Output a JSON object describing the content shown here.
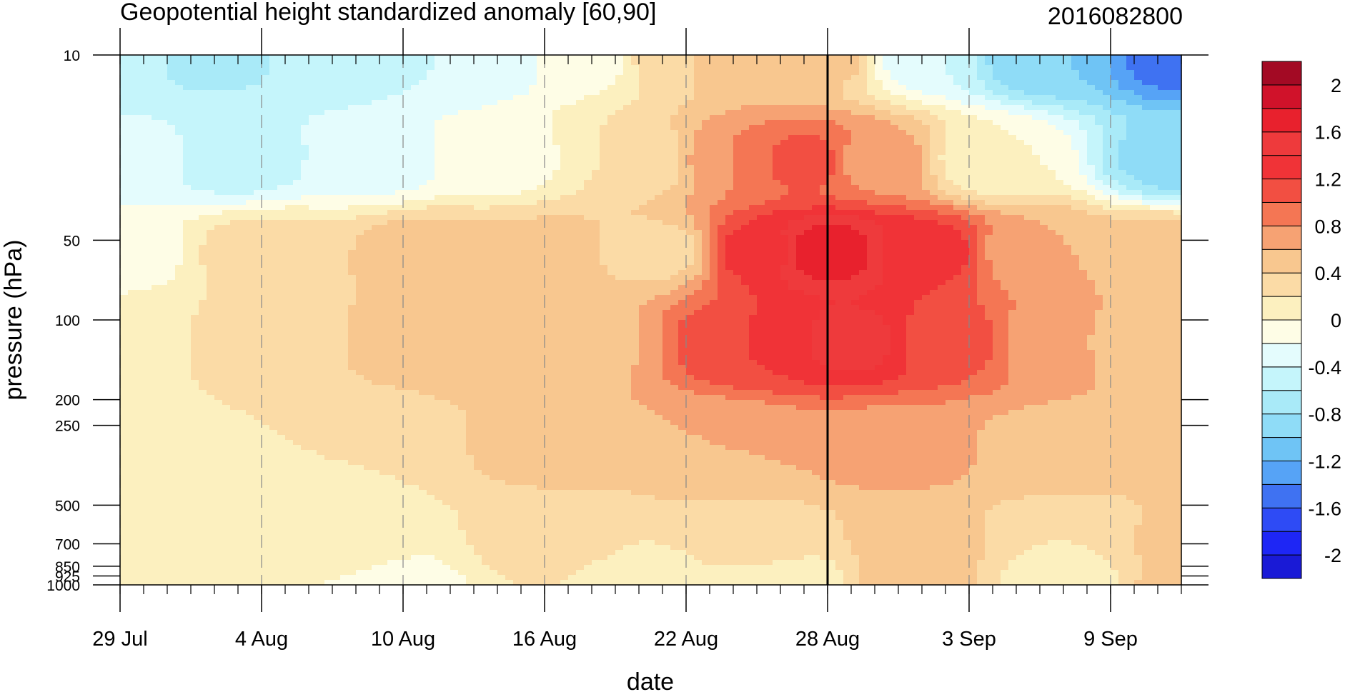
{
  "chart_data": {
    "type": "heatmap",
    "title": "Geopotential height standardized anomaly [60,90]",
    "subtitle": "2016082800",
    "xlabel": "date",
    "ylabel": "pressure (hPa)",
    "x_start": "2016-07-29",
    "x_end": "2016-09-12",
    "x_ticks": [
      {
        "date": "2016-07-29",
        "label": "29 Jul"
      },
      {
        "date": "2016-08-04",
        "label": "4 Aug"
      },
      {
        "date": "2016-08-10",
        "label": "10 Aug"
      },
      {
        "date": "2016-08-16",
        "label": "16 Aug"
      },
      {
        "date": "2016-08-22",
        "label": "22 Aug"
      },
      {
        "date": "2016-08-28",
        "label": "28 Aug"
      },
      {
        "date": "2016-09-03",
        "label": "3 Sep"
      },
      {
        "date": "2016-09-09",
        "label": "9 Sep"
      }
    ],
    "y_scale": "log",
    "y_reversed": true,
    "ylim": [
      1000,
      10
    ],
    "y_ticks": [
      {
        "value": 10,
        "label": "10"
      },
      {
        "value": 50,
        "label": "50"
      },
      {
        "value": 100,
        "label": "100"
      },
      {
        "value": 200,
        "label": "200"
      },
      {
        "value": 250,
        "label": "250"
      },
      {
        "value": 500,
        "label": "500"
      },
      {
        "value": 700,
        "label": "700"
      },
      {
        "value": 850,
        "label": "850"
      },
      {
        "value": 925,
        "label": "925"
      },
      {
        "value": 1000,
        "label": "1000"
      }
    ],
    "marker_date": "2016-08-28",
    "colorbar": {
      "levels": [
        -2.2,
        -2,
        -1.8,
        -1.6,
        -1.4,
        -1.2,
        -1,
        -0.8,
        -0.6,
        -0.4,
        -0.2,
        0,
        0.2,
        0.4,
        0.6,
        0.8,
        1,
        1.2,
        1.4,
        1.6,
        1.8,
        2,
        2.2
      ],
      "colors": [
        "#1a1ad6",
        "#1e26f5",
        "#2e4bf5",
        "#3f72f2",
        "#56a3f6",
        "#6fc4f5",
        "#8fdcf7",
        "#a9eaf8",
        "#c5f5fb",
        "#e4fcfd",
        "#fefde6",
        "#fcf0bf",
        "#fbdba6",
        "#f8c78f",
        "#f6a273",
        "#f47654",
        "#f24f42",
        "#f03337",
        "#ee3a3c",
        "#e8212d",
        "#d0122a",
        "#a30a24"
      ],
      "labels": [
        {
          "value": 2,
          "text": "2"
        },
        {
          "value": 1.6,
          "text": "1.6"
        },
        {
          "value": 1.2,
          "text": "1.2"
        },
        {
          "value": 0.8,
          "text": "0.8"
        },
        {
          "value": 0.4,
          "text": "0.4"
        },
        {
          "value": 0,
          "text": "0"
        },
        {
          "value": -0.4,
          "text": "-0.4"
        },
        {
          "value": -0.8,
          "text": "-0.8"
        },
        {
          "value": -1.2,
          "text": "-1.2"
        },
        {
          "value": -1.6,
          "text": "-1.6"
        },
        {
          "value": -2,
          "text": "-2"
        }
      ]
    },
    "field": {
      "nodes": [
        {
          "date": "2016-07-29",
          "p": 10,
          "v": -0.55
        },
        {
          "date": "2016-08-02",
          "p": 10,
          "v": -0.65
        },
        {
          "date": "2016-08-07",
          "p": 10,
          "v": -0.55
        },
        {
          "date": "2016-08-13",
          "p": 10,
          "v": -0.4
        },
        {
          "date": "2016-08-18",
          "p": 10,
          "v": -0.15
        },
        {
          "date": "2016-08-21",
          "p": 10,
          "v": 0.3
        },
        {
          "date": "2016-08-24",
          "p": 10,
          "v": 0.6
        },
        {
          "date": "2016-08-28",
          "p": 10,
          "v": 0.5
        },
        {
          "date": "2016-09-01",
          "p": 10,
          "v": -0.4
        },
        {
          "date": "2016-09-06",
          "p": 10,
          "v": -1.0
        },
        {
          "date": "2016-09-12",
          "p": 10,
          "v": -1.5
        },
        {
          "date": "2016-07-29",
          "p": 25,
          "v": -0.3
        },
        {
          "date": "2016-08-03",
          "p": 25,
          "v": -0.5
        },
        {
          "date": "2016-08-09",
          "p": 25,
          "v": -0.3
        },
        {
          "date": "2016-08-14",
          "p": 25,
          "v": -0.1
        },
        {
          "date": "2016-08-20",
          "p": 25,
          "v": 0.2
        },
        {
          "date": "2016-08-24",
          "p": 25,
          "v": 0.8
        },
        {
          "date": "2016-08-27",
          "p": 25,
          "v": 1.1
        },
        {
          "date": "2016-08-30",
          "p": 25,
          "v": 0.7
        },
        {
          "date": "2016-09-04",
          "p": 25,
          "v": 0.0
        },
        {
          "date": "2016-09-12",
          "p": 25,
          "v": -0.9
        },
        {
          "date": "2016-07-29",
          "p": 55,
          "v": -0.1
        },
        {
          "date": "2016-08-04",
          "p": 55,
          "v": 0.3
        },
        {
          "date": "2016-08-11",
          "p": 55,
          "v": 0.5
        },
        {
          "date": "2016-08-16",
          "p": 55,
          "v": 0.45
        },
        {
          "date": "2016-08-21",
          "p": 55,
          "v": 0.3
        },
        {
          "date": "2016-08-25",
          "p": 55,
          "v": 1.3
        },
        {
          "date": "2016-08-28",
          "p": 55,
          "v": 1.75
        },
        {
          "date": "2016-09-01",
          "p": 55,
          "v": 1.3
        },
        {
          "date": "2016-09-06",
          "p": 55,
          "v": 0.6
        },
        {
          "date": "2016-09-12",
          "p": 55,
          "v": 0.5
        },
        {
          "date": "2016-07-29",
          "p": 120,
          "v": 0.1
        },
        {
          "date": "2016-08-04",
          "p": 120,
          "v": 0.3
        },
        {
          "date": "2016-08-11",
          "p": 120,
          "v": 0.5
        },
        {
          "date": "2016-08-17",
          "p": 120,
          "v": 0.5
        },
        {
          "date": "2016-08-25",
          "p": 120,
          "v": 1.2
        },
        {
          "date": "2016-08-29",
          "p": 120,
          "v": 1.5
        },
        {
          "date": "2016-09-02",
          "p": 120,
          "v": 1.1
        },
        {
          "date": "2016-09-07",
          "p": 120,
          "v": 0.6
        },
        {
          "date": "2016-09-12",
          "p": 120,
          "v": 0.5
        },
        {
          "date": "2016-07-29",
          "p": 300,
          "v": 0.1
        },
        {
          "date": "2016-08-08",
          "p": 300,
          "v": 0.2
        },
        {
          "date": "2016-08-16",
          "p": 300,
          "v": 0.45
        },
        {
          "date": "2016-08-24",
          "p": 300,
          "v": 0.6
        },
        {
          "date": "2016-08-31",
          "p": 300,
          "v": 0.7
        },
        {
          "date": "2016-09-06",
          "p": 300,
          "v": 0.55
        },
        {
          "date": "2016-09-12",
          "p": 300,
          "v": 0.5
        },
        {
          "date": "2016-07-29",
          "p": 700,
          "v": 0.0
        },
        {
          "date": "2016-08-08",
          "p": 700,
          "v": 0.05
        },
        {
          "date": "2016-08-16",
          "p": 700,
          "v": 0.3
        },
        {
          "date": "2016-08-25",
          "p": 700,
          "v": 0.3
        },
        {
          "date": "2016-09-01",
          "p": 700,
          "v": 0.5
        },
        {
          "date": "2016-09-07",
          "p": 700,
          "v": 0.2
        },
        {
          "date": "2016-09-12",
          "p": 700,
          "v": 0.45
        },
        {
          "date": "2016-07-29",
          "p": 1000,
          "v": 0.0
        },
        {
          "date": "2016-08-10",
          "p": 1000,
          "v": -0.05
        },
        {
          "date": "2016-08-20",
          "p": 1000,
          "v": 0.1
        },
        {
          "date": "2016-08-26",
          "p": 1000,
          "v": 0.0
        },
        {
          "date": "2016-09-01",
          "p": 1000,
          "v": 0.5
        },
        {
          "date": "2016-09-07",
          "p": 1000,
          "v": 0.0
        },
        {
          "date": "2016-09-12",
          "p": 1000,
          "v": 0.45
        }
      ]
    }
  }
}
